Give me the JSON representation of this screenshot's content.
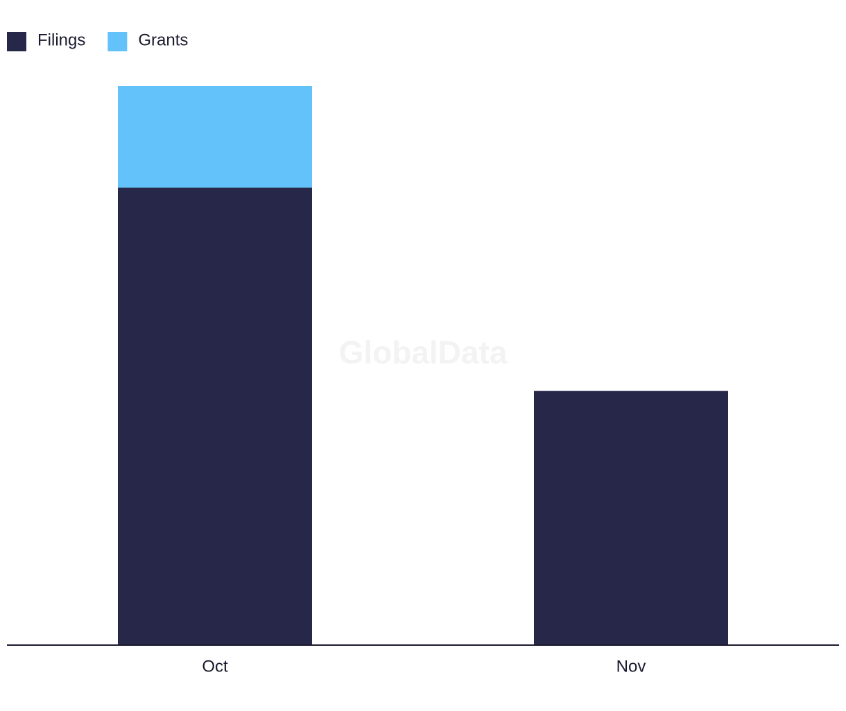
{
  "chart_data": {
    "type": "bar",
    "stacked": true,
    "watermark": "GlobalData",
    "categories": [
      "Oct",
      "Nov"
    ],
    "series": [
      {
        "name": "Filings",
        "color": "#27274a",
        "values": [
          9,
          5
        ]
      },
      {
        "name": "Grants",
        "color": "#62c2f9",
        "values": [
          2,
          0
        ]
      }
    ],
    "legend": "top-left"
  }
}
